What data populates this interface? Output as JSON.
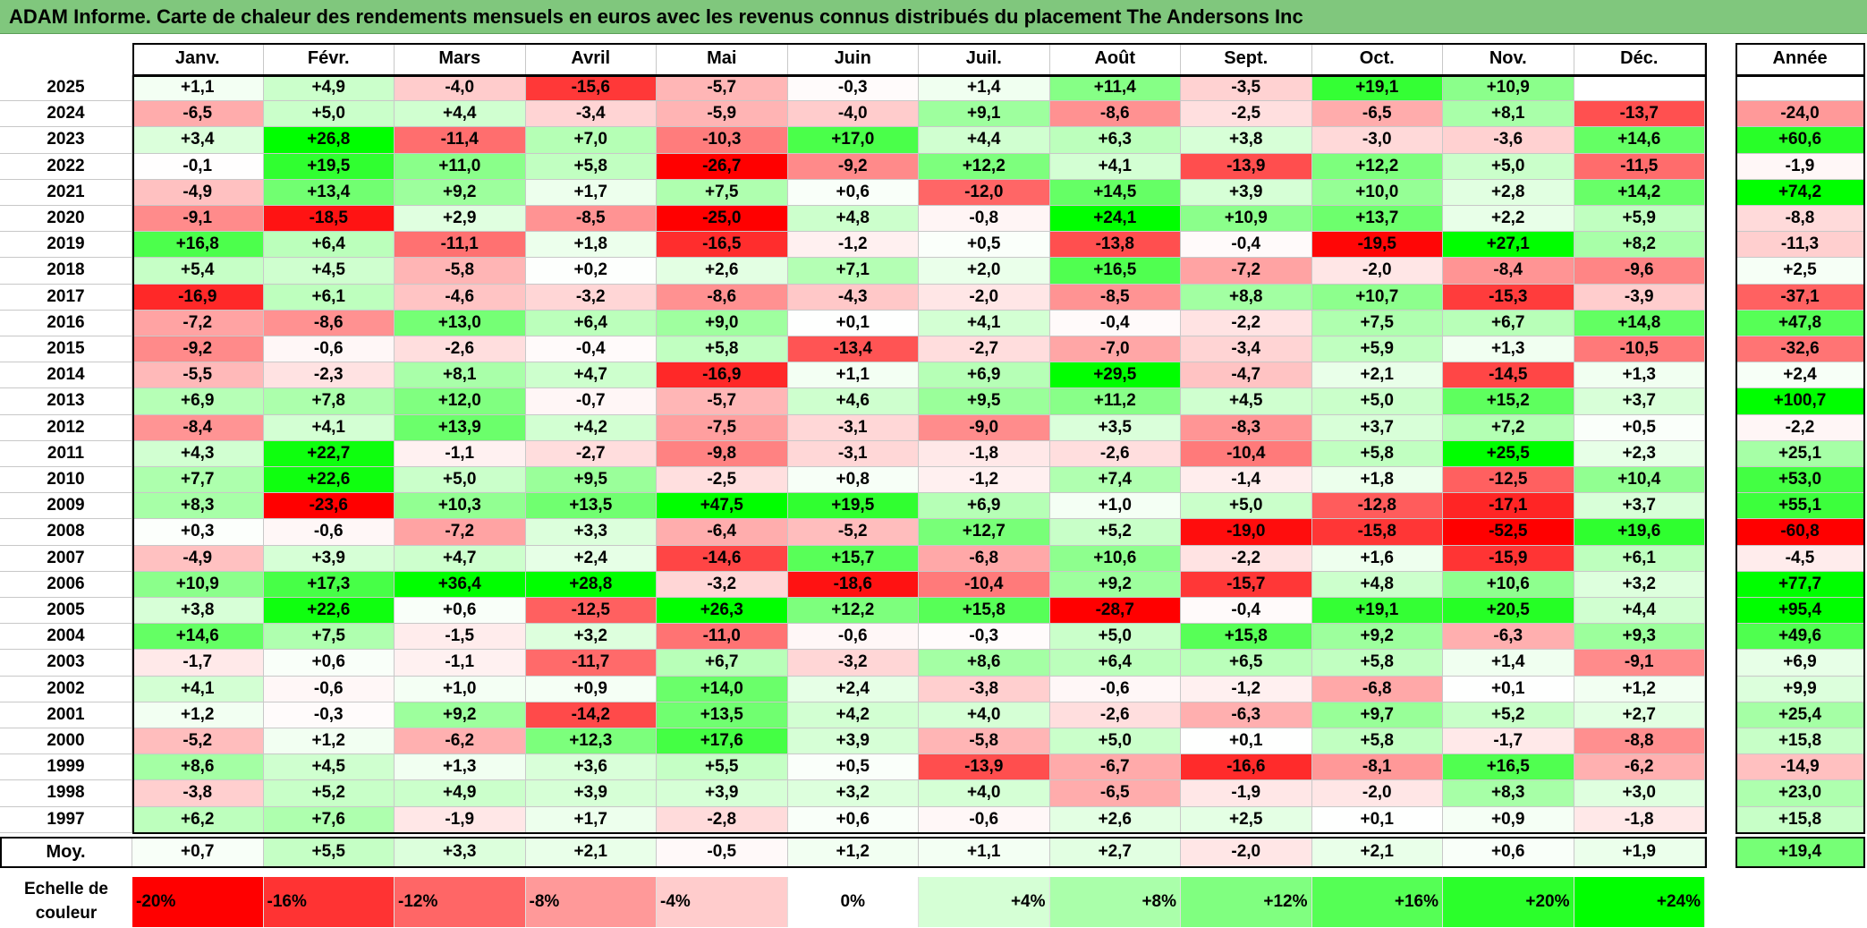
{
  "title": "ADAM Informe. Carte de chaleur des rendements mensuels en euros avec les revenus connus distribués du placement The Andersons Inc",
  "chart_data": {
    "type": "heatmap",
    "title": "ADAM Informe. Carte de chaleur des rendements mensuels en euros avec les revenus connus distribués du placement The Andersons Inc",
    "columns": [
      "Janv.",
      "Févr.",
      "Mars",
      "Avril",
      "Mai",
      "Juin",
      "Juil.",
      "Août",
      "Sept.",
      "Oct.",
      "Nov.",
      "Déc."
    ],
    "year_header": "Année",
    "rows": [
      {
        "label": "2025",
        "values": [
          "+1,1",
          "+4,9",
          "-4,0",
          "-15,6",
          "-5,7",
          "-0,3",
          "+1,4",
          "+11,4",
          "-3,5",
          "+19,1",
          "+10,9",
          ""
        ],
        "year": ""
      },
      {
        "label": "2024",
        "values": [
          "-6,5",
          "+5,0",
          "+4,4",
          "-3,4",
          "-5,9",
          "-4,0",
          "+9,1",
          "-8,6",
          "-2,5",
          "-6,5",
          "+8,1",
          "-13,7"
        ],
        "year": "-24,0"
      },
      {
        "label": "2023",
        "values": [
          "+3,4",
          "+26,8",
          "-11,4",
          "+7,0",
          "-10,3",
          "+17,0",
          "+4,4",
          "+6,3",
          "+3,8",
          "-3,0",
          "-3,6",
          "+14,6"
        ],
        "year": "+60,6"
      },
      {
        "label": "2022",
        "values": [
          "-0,1",
          "+19,5",
          "+11,0",
          "+5,8",
          "-26,7",
          "-9,2",
          "+12,2",
          "+4,1",
          "-13,9",
          "+12,2",
          "+5,0",
          "-11,5"
        ],
        "year": "-1,9"
      },
      {
        "label": "2021",
        "values": [
          "-4,9",
          "+13,4",
          "+9,2",
          "+1,7",
          "+7,5",
          "+0,6",
          "-12,0",
          "+14,5",
          "+3,9",
          "+10,0",
          "+2,8",
          "+14,2"
        ],
        "year": "+74,2"
      },
      {
        "label": "2020",
        "values": [
          "-9,1",
          "-18,5",
          "+2,9",
          "-8,5",
          "-25,0",
          "+4,8",
          "-0,8",
          "+24,1",
          "+10,9",
          "+13,7",
          "+2,2",
          "+5,9"
        ],
        "year": "-8,8"
      },
      {
        "label": "2019",
        "values": [
          "+16,8",
          "+6,4",
          "-11,1",
          "+1,8",
          "-16,5",
          "-1,2",
          "+0,5",
          "-13,8",
          "-0,4",
          "-19,5",
          "+27,1",
          "+8,2"
        ],
        "year": "-11,3"
      },
      {
        "label": "2018",
        "values": [
          "+5,4",
          "+4,5",
          "-5,8",
          "+0,2",
          "+2,6",
          "+7,1",
          "+2,0",
          "+16,5",
          "-7,2",
          "-2,0",
          "-8,4",
          "-9,6"
        ],
        "year": "+2,5"
      },
      {
        "label": "2017",
        "values": [
          "-16,9",
          "+6,1",
          "-4,6",
          "-3,2",
          "-8,6",
          "-4,3",
          "-2,0",
          "-8,5",
          "+8,8",
          "+10,7",
          "-15,3",
          "-3,9"
        ],
        "year": "-37,1"
      },
      {
        "label": "2016",
        "values": [
          "-7,2",
          "-8,6",
          "+13,0",
          "+6,4",
          "+9,0",
          "+0,1",
          "+4,1",
          "-0,4",
          "-2,2",
          "+7,5",
          "+6,7",
          "+14,8"
        ],
        "year": "+47,8"
      },
      {
        "label": "2015",
        "values": [
          "-9,2",
          "-0,6",
          "-2,6",
          "-0,4",
          "+5,8",
          "-13,4",
          "-2,7",
          "-7,0",
          "-3,4",
          "+5,9",
          "+1,3",
          "-10,5"
        ],
        "year": "-32,6"
      },
      {
        "label": "2014",
        "values": [
          "-5,5",
          "-2,3",
          "+8,1",
          "+4,7",
          "-16,9",
          "+1,1",
          "+6,9",
          "+29,5",
          "-4,7",
          "+2,1",
          "-14,5",
          "+1,3"
        ],
        "year": "+2,4"
      },
      {
        "label": "2013",
        "values": [
          "+6,9",
          "+7,8",
          "+12,0",
          "-0,7",
          "-5,7",
          "+4,6",
          "+9,5",
          "+11,2",
          "+4,5",
          "+5,0",
          "+15,2",
          "+3,7"
        ],
        "year": "+100,7"
      },
      {
        "label": "2012",
        "values": [
          "-8,4",
          "+4,1",
          "+13,9",
          "+4,2",
          "-7,5",
          "-3,1",
          "-9,0",
          "+3,5",
          "-8,3",
          "+3,7",
          "+7,2",
          "+0,5"
        ],
        "year": "-2,2"
      },
      {
        "label": "2011",
        "values": [
          "+4,3",
          "+22,7",
          "-1,1",
          "-2,7",
          "-9,8",
          "-3,1",
          "-1,8",
          "-2,6",
          "-10,4",
          "+5,8",
          "+25,5",
          "+2,3"
        ],
        "year": "+25,1"
      },
      {
        "label": "2010",
        "values": [
          "+7,7",
          "+22,6",
          "+5,0",
          "+9,5",
          "-2,5",
          "+0,8",
          "-1,2",
          "+7,4",
          "-1,4",
          "+1,8",
          "-12,5",
          "+10,4"
        ],
        "year": "+53,0"
      },
      {
        "label": "2009",
        "values": [
          "+8,3",
          "-23,6",
          "+10,3",
          "+13,5",
          "+47,5",
          "+19,5",
          "+6,9",
          "+1,0",
          "+5,0",
          "-12,8",
          "-17,1",
          "+3,7"
        ],
        "year": "+55,1"
      },
      {
        "label": "2008",
        "values": [
          "+0,3",
          "-0,6",
          "-7,2",
          "+3,3",
          "-6,4",
          "-5,2",
          "+12,7",
          "+5,2",
          "-19,0",
          "-15,8",
          "-52,5",
          "+19,6"
        ],
        "year": "-60,8"
      },
      {
        "label": "2007",
        "values": [
          "-4,9",
          "+3,9",
          "+4,7",
          "+2,4",
          "-14,6",
          "+15,7",
          "-6,8",
          "+10,6",
          "-2,2",
          "+1,6",
          "-15,9",
          "+6,1"
        ],
        "year": "-4,5"
      },
      {
        "label": "2006",
        "values": [
          "+10,9",
          "+17,3",
          "+36,4",
          "+28,8",
          "-3,2",
          "-18,6",
          "-10,4",
          "+9,2",
          "-15,7",
          "+4,8",
          "+10,6",
          "+3,2"
        ],
        "year": "+77,7"
      },
      {
        "label": "2005",
        "values": [
          "+3,8",
          "+22,6",
          "+0,6",
          "-12,5",
          "+26,3",
          "+12,2",
          "+15,8",
          "-28,7",
          "-0,4",
          "+19,1",
          "+20,5",
          "+4,4"
        ],
        "year": "+95,4"
      },
      {
        "label": "2004",
        "values": [
          "+14,6",
          "+7,5",
          "-1,5",
          "+3,2",
          "-11,0",
          "-0,6",
          "-0,3",
          "+5,0",
          "+15,8",
          "+9,2",
          "-6,3",
          "+9,3"
        ],
        "year": "+49,6"
      },
      {
        "label": "2003",
        "values": [
          "-1,7",
          "+0,6",
          "-1,1",
          "-11,7",
          "+6,7",
          "-3,2",
          "+8,6",
          "+6,4",
          "+6,5",
          "+5,8",
          "+1,4",
          "-9,1"
        ],
        "year": "+6,9"
      },
      {
        "label": "2002",
        "values": [
          "+4,1",
          "-0,6",
          "+1,0",
          "+0,9",
          "+14,0",
          "+2,4",
          "-3,8",
          "-0,6",
          "-1,2",
          "-6,8",
          "+0,1",
          "+1,2"
        ],
        "year": "+9,9"
      },
      {
        "label": "2001",
        "values": [
          "+1,2",
          "-0,3",
          "+9,2",
          "-14,2",
          "+13,5",
          "+4,2",
          "+4,0",
          "-2,6",
          "-6,3",
          "+9,7",
          "+5,2",
          "+2,7"
        ],
        "year": "+25,4"
      },
      {
        "label": "2000",
        "values": [
          "-5,2",
          "+1,2",
          "-6,2",
          "+12,3",
          "+17,6",
          "+3,9",
          "-5,8",
          "+5,0",
          "+0,1",
          "+5,8",
          "-1,7",
          "-8,8"
        ],
        "year": "+15,8"
      },
      {
        "label": "1999",
        "values": [
          "+8,6",
          "+4,5",
          "+1,3",
          "+3,6",
          "+5,5",
          "+0,5",
          "-13,9",
          "-6,7",
          "-16,6",
          "-8,1",
          "+16,5",
          "-6,2"
        ],
        "year": "-14,9"
      },
      {
        "label": "1998",
        "values": [
          "-3,8",
          "+5,2",
          "+4,9",
          "+3,9",
          "+3,9",
          "+3,2",
          "+4,0",
          "-6,5",
          "-1,9",
          "-2,0",
          "+8,3",
          "+3,0"
        ],
        "year": "+23,0"
      },
      {
        "label": "1997",
        "values": [
          "+6,2",
          "+7,6",
          "-1,9",
          "+1,7",
          "-2,8",
          "+0,6",
          "-0,6",
          "+2,6",
          "+2,5",
          "+0,1",
          "+0,9",
          "-1,8"
        ],
        "year": "+15,8"
      }
    ],
    "average": {
      "label": "Moy.",
      "values": [
        "+0,7",
        "+5,5",
        "+3,3",
        "+2,1",
        "-0,5",
        "+1,2",
        "+1,1",
        "+2,7",
        "-2,0",
        "+2,1",
        "+0,6",
        "+1,9"
      ],
      "year": "+19,4"
    },
    "scale": {
      "label": "Echelle de couleur",
      "steps": [
        {
          "text": "-20%",
          "value": -20
        },
        {
          "text": "-16%",
          "value": -16
        },
        {
          "text": "-12%",
          "value": -12
        },
        {
          "text": "-8%",
          "value": -8
        },
        {
          "text": "-4%",
          "value": -4
        },
        {
          "text": "0%",
          "value": 0
        },
        {
          "text": "+4%",
          "value": 4
        },
        {
          "text": "+8%",
          "value": 8
        },
        {
          "text": "+12%",
          "value": 12
        },
        {
          "text": "+16%",
          "value": 16
        },
        {
          "text": "+20%",
          "value": 20
        },
        {
          "text": "+24%",
          "value": 24
        }
      ]
    },
    "colors": {
      "negative": "#ff0000",
      "neutral": "#ffffff",
      "positive": "#00ff00"
    },
    "color_range": [
      -20,
      24
    ]
  }
}
